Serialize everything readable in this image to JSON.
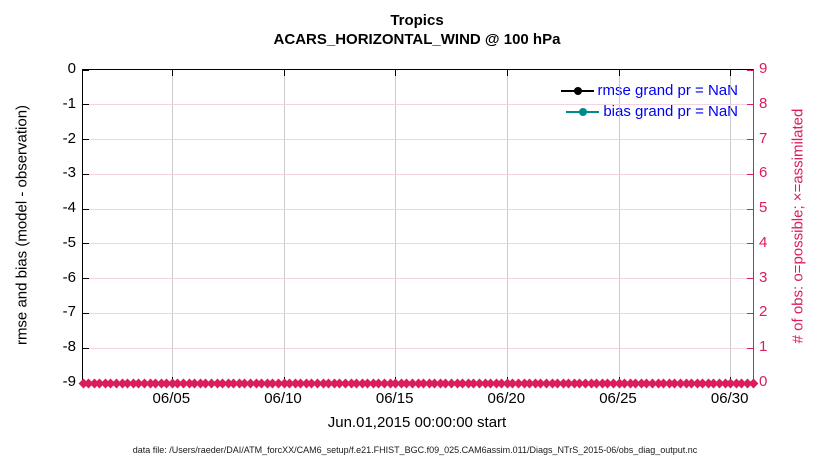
{
  "title": {
    "line1": "Tropics",
    "line2": "ACARS_HORIZONTAL_WIND @ 100 hPa"
  },
  "axes": {
    "left_y": {
      "label": "rmse and bias (model - observation)",
      "ticks": [
        "0",
        "-1",
        "-2",
        "-3",
        "-4",
        "-5",
        "-6",
        "-7",
        "-8",
        "-9"
      ],
      "color": "#000000"
    },
    "right_y": {
      "label": "# of obs: o=possible; ×=assimilated",
      "ticks": [
        "9",
        "8",
        "7",
        "6",
        "5",
        "4",
        "3",
        "2",
        "1",
        "0"
      ],
      "color": "#db1c5f"
    },
    "x": {
      "label": "Jun.01,2015 00:00:00 start",
      "ticks": [
        {
          "label": "06/05",
          "day": 4
        },
        {
          "label": "06/10",
          "day": 9
        },
        {
          "label": "06/15",
          "day": 14
        },
        {
          "label": "06/20",
          "day": 19
        },
        {
          "label": "06/25",
          "day": 24
        },
        {
          "label": "06/30",
          "day": 29
        }
      ],
      "span_days": 30
    }
  },
  "legend": {
    "items": [
      {
        "label": "rmse grand pr = NaN",
        "color": "#000000",
        "text_color": "#0000ee"
      },
      {
        "label": "bias grand pr = NaN",
        "color": "#008b8b",
        "text_color": "#0000ee"
      }
    ]
  },
  "footer": "data file: /Users/raeder/DAI/ATM_forcXX/CAM6_setup/f.e21.FHIST_BGC.f09_025.CAM6assim.011/Diags_NTrS_2015-06/obs_diag_output.nc",
  "colors": {
    "accent_pink": "#db1c5f",
    "grid_horizontal": "#f3d3dd",
    "grid_vertical": "#b9b9b9",
    "legend_text": "#0000ee",
    "bias_teal": "#008b8b",
    "rmse_black": "#000000"
  },
  "chart_data": {
    "type": "line",
    "title": "Tropics — ACARS_HORIZONTAL_WIND @ 100 hPa",
    "x": {
      "label": "Jun.01,2015 00:00:00 start",
      "tick_labels": [
        "06/05",
        "06/10",
        "06/15",
        "06/20",
        "06/25",
        "06/30"
      ],
      "range": [
        "06/01",
        "07/01"
      ]
    },
    "y_left": {
      "label": "rmse and bias (model - observation)",
      "lim": [
        -9,
        0
      ]
    },
    "y_right": {
      "label": "# of obs: o=possible; ×=assimilated",
      "lim": [
        0,
        9
      ]
    },
    "grid": true,
    "legend_position": "upper-right-inside",
    "series": [
      {
        "name": "rmse grand pr = NaN",
        "axis": "left",
        "color": "#000000",
        "marker": "filled-circle",
        "values": [],
        "visible_points": "none (all NaN)"
      },
      {
        "name": "bias grand pr = NaN",
        "axis": "left",
        "color": "#008b8b",
        "marker": "filled-circle",
        "values": [],
        "visible_points": "none (all NaN)"
      },
      {
        "name": "# of obs possible (o)",
        "axis": "right",
        "color": "#db1c5f",
        "marker": "o",
        "constant_value": 0,
        "n_points": 121
      },
      {
        "name": "# of obs assimilated (×)",
        "axis": "right",
        "color": "#db1c5f",
        "marker": "×",
        "constant_value": 0,
        "n_points": 121
      }
    ]
  }
}
